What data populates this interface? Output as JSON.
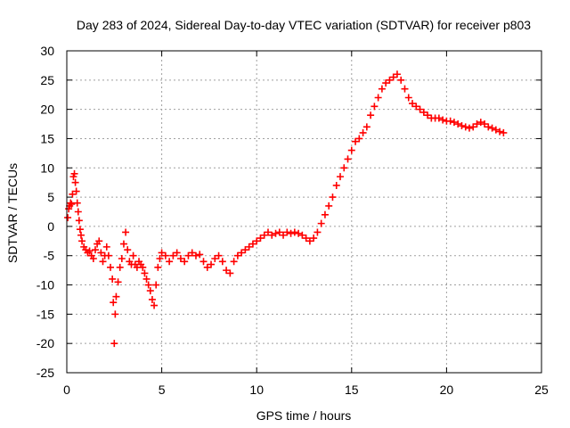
{
  "chart_data": {
    "type": "scatter",
    "title": "Day 283 of 2024, Sidereal Day-to-day VTEC variation (SDTVAR) for receiver p803",
    "xlabel": "GPS time / hours",
    "ylabel": "SDTVAR / TECUs",
    "xlim": [
      0,
      25
    ],
    "ylim": [
      -25,
      30
    ],
    "xticks": [
      0,
      5,
      10,
      15,
      20,
      25
    ],
    "yticks": [
      -25,
      -20,
      -15,
      -10,
      -5,
      0,
      5,
      10,
      15,
      20,
      25,
      30
    ],
    "grid": true,
    "marker": "+",
    "series": [
      {
        "name": "SDTVAR",
        "color": "#ff0000",
        "x": [
          0.05,
          0.1,
          0.15,
          0.2,
          0.25,
          0.3,
          0.35,
          0.4,
          0.45,
          0.5,
          0.55,
          0.6,
          0.65,
          0.7,
          0.75,
          0.8,
          0.9,
          1.0,
          1.1,
          1.2,
          1.3,
          1.4,
          1.5,
          1.6,
          1.7,
          1.8,
          1.9,
          2.0,
          2.1,
          2.2,
          2.3,
          2.4,
          2.45,
          2.5,
          2.55,
          2.6,
          2.7,
          2.8,
          2.9,
          3.0,
          3.1,
          3.2,
          3.3,
          3.4,
          3.5,
          3.6,
          3.7,
          3.8,
          3.9,
          4.0,
          4.1,
          4.2,
          4.3,
          4.4,
          4.5,
          4.6,
          4.7,
          4.8,
          4.9,
          5.0,
          5.2,
          5.4,
          5.6,
          5.8,
          6.0,
          6.2,
          6.4,
          6.6,
          6.8,
          7.0,
          7.2,
          7.4,
          7.6,
          7.8,
          8.0,
          8.2,
          8.4,
          8.6,
          8.8,
          9.0,
          9.2,
          9.4,
          9.6,
          9.8,
          10.0,
          10.2,
          10.4,
          10.6,
          10.8,
          11.0,
          11.2,
          11.4,
          11.6,
          11.8,
          12.0,
          12.2,
          12.4,
          12.6,
          12.8,
          13.0,
          13.2,
          13.4,
          13.6,
          13.8,
          14.0,
          14.2,
          14.4,
          14.6,
          14.8,
          15.0,
          15.2,
          15.4,
          15.6,
          15.8,
          16.0,
          16.2,
          16.4,
          16.6,
          16.8,
          17.0,
          17.2,
          17.4,
          17.6,
          17.8,
          18.0,
          18.2,
          18.4,
          18.6,
          18.8,
          19.0,
          19.2,
          19.4,
          19.6,
          19.8,
          20.0,
          20.2,
          20.4,
          20.6,
          20.8,
          21.0,
          21.2,
          21.4,
          21.6,
          21.8,
          22.0,
          22.2,
          22.4,
          22.6,
          22.8,
          23.0
        ],
        "y": [
          1.5,
          3.0,
          3.5,
          4.0,
          3.8,
          5.5,
          8.5,
          9.0,
          7.5,
          6.0,
          4.0,
          2.5,
          1.0,
          -0.5,
          -1.5,
          -2.5,
          -3.5,
          -4.0,
          -4.5,
          -4.2,
          -5.0,
          -5.5,
          -4.0,
          -3.0,
          -2.5,
          -4.5,
          -6.0,
          -5.0,
          -3.5,
          -5.0,
          -7.0,
          -9.0,
          -13.0,
          -20.0,
          -15.0,
          -12.0,
          -9.5,
          -7.0,
          -5.5,
          -3.0,
          -1.0,
          -4.0,
          -6.0,
          -6.5,
          -5.0,
          -6.5,
          -7.0,
          -6.0,
          -6.5,
          -7.0,
          -8.0,
          -9.0,
          -10.0,
          -11.0,
          -12.5,
          -13.5,
          -10.0,
          -7.0,
          -5.5,
          -4.5,
          -5.0,
          -6.0,
          -5.0,
          -4.5,
          -5.5,
          -6.0,
          -5.0,
          -4.5,
          -5.0,
          -4.8,
          -6.0,
          -7.0,
          -6.5,
          -5.5,
          -5.0,
          -6.0,
          -7.5,
          -8.0,
          -6.0,
          -5.0,
          -4.5,
          -4.0,
          -3.5,
          -3.0,
          -2.5,
          -2.0,
          -1.5,
          -1.0,
          -1.5,
          -1.2,
          -1.0,
          -1.5,
          -1.0,
          -1.2,
          -1.0,
          -1.2,
          -1.5,
          -2.0,
          -2.5,
          -2.0,
          -1.0,
          0.5,
          2.0,
          3.5,
          5.0,
          7.0,
          8.5,
          10.0,
          11.5,
          13.0,
          14.5,
          15.0,
          16.0,
          17.0,
          19.0,
          20.5,
          22.0,
          23.5,
          24.5,
          25.0,
          25.5,
          26.0,
          25.0,
          23.5,
          22.0,
          21.0,
          20.5,
          20.0,
          19.5,
          19.0,
          18.5,
          18.5,
          18.5,
          18.2,
          18.0,
          18.0,
          17.8,
          17.5,
          17.2,
          17.0,
          16.8,
          17.0,
          17.5,
          17.8,
          17.5,
          17.0,
          16.8,
          16.5,
          16.2,
          16.0
        ]
      }
    ]
  }
}
